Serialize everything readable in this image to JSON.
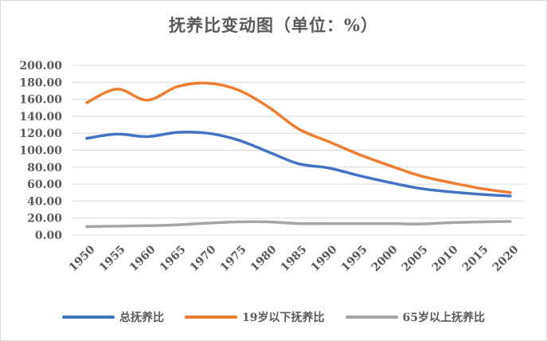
{
  "chart_data": {
    "type": "line",
    "title": "抚养比变动图（单位：%）",
    "x": [
      "1950",
      "1955",
      "1960",
      "1965",
      "1970",
      "1975",
      "1980",
      "1985",
      "1990",
      "1995",
      "2000",
      "2005",
      "2010",
      "2015",
      "2020"
    ],
    "ylim": [
      0,
      200
    ],
    "yticks": [
      "0.00",
      "20.00",
      "40.00",
      "60.00",
      "80.00",
      "100.00",
      "120.00",
      "140.00",
      "160.00",
      "180.00",
      "200.00"
    ],
    "grid": true,
    "legend_position": "bottom",
    "series": [
      {
        "name": "总抚养比",
        "color": "#4472c4",
        "values": [
          114,
          119,
          116,
          121,
          120,
          112,
          98,
          84,
          79,
          70,
          62,
          55,
          51,
          48,
          46
        ]
      },
      {
        "name": "19岁以下抚养比",
        "color": "#ed7d31",
        "values": [
          156,
          172,
          159,
          175,
          179,
          171,
          151,
          125,
          110,
          95,
          82,
          70,
          62,
          55,
          50
        ]
      },
      {
        "name": "65岁以上抚养比",
        "color": "#a5a5a5",
        "values": [
          10,
          10.5,
          11,
          12,
          14,
          15.5,
          15.5,
          13.5,
          13.5,
          13.5,
          13.5,
          13,
          14.5,
          15.5,
          16
        ]
      }
    ]
  }
}
